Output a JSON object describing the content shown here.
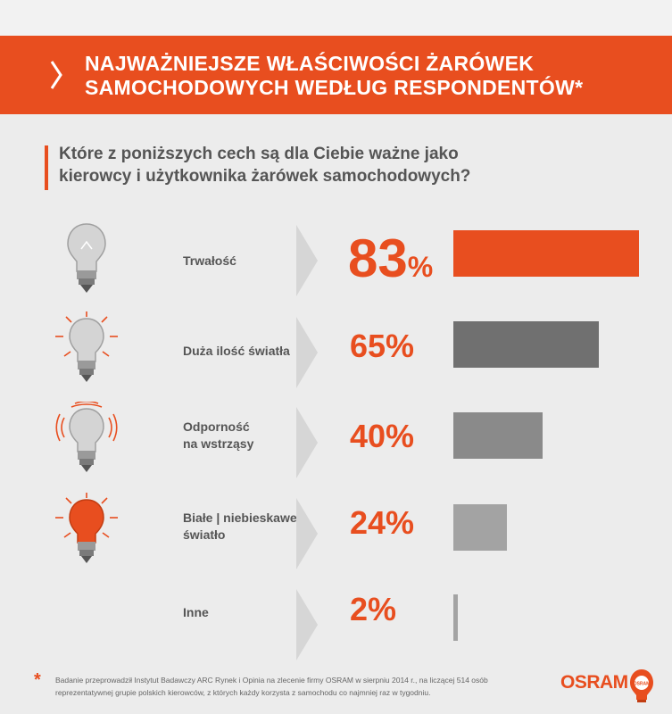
{
  "header": {
    "title_line1": "NAJWAŻNIEJSZE WŁAŚCIWOŚCI ŻARÓWEK",
    "title_line2": "SAMOCHODOWYCH WEDŁUG RESPONDENTÓW*"
  },
  "question": {
    "line1": "Które z poniższych cech są dla Ciebie ważne jako",
    "line2": "kierowcy i użytkownika żarówek samochodowych?"
  },
  "colors": {
    "accent": "#e84e1f",
    "dark_bar": "#707070",
    "mid_bar": "#8a8a8a",
    "light_bar": "#a3a3a3",
    "text": "#555555",
    "background": "#ececec"
  },
  "chart_data": {
    "type": "bar",
    "orientation": "horizontal",
    "categories": [
      "Trwałość",
      "Duża ilość światła",
      "Odporność na wstrząsy",
      "Białe | niebieskawe światło",
      "Inne"
    ],
    "values": [
      83,
      65,
      40,
      24,
      2
    ],
    "value_labels": [
      "83%",
      "65%",
      "40%",
      "24%",
      "2%"
    ],
    "unit": "%",
    "xlim": [
      0,
      100
    ]
  },
  "rows": [
    {
      "label_line1": "Trwałość",
      "label_line2": "",
      "value": "83",
      "unit": "%",
      "icon": "bulb-icon"
    },
    {
      "label_line1": "Duża ilość światła",
      "label_line2": "",
      "value": "65%",
      "icon": "bulb-bright-icon"
    },
    {
      "label_line1": "Odporność",
      "label_line2": "na wstrząsy",
      "value": "40%",
      "icon": "bulb-vibration-icon"
    },
    {
      "label_line1": "Białe | niebieskawe",
      "label_line2": "światło",
      "value": "24%",
      "icon": "bulb-white-light-icon"
    },
    {
      "label_line1": "Inne",
      "label_line2": "",
      "value": "2%",
      "icon": ""
    }
  ],
  "footnote": {
    "star": "*",
    "line1": "Badanie przeprowadził Instytut Badawczy ARC Rynek i Opinia na zlecenie firmy OSRAM w sierpniu 2014 r., na liczącej 514 osób",
    "line2": "reprezentatywnej grupie polskich kierowców, z których każdy korzysta z samochodu co najmniej raz w tygodniu."
  },
  "logo": {
    "text": "OSRAM",
    "badge": "OSRAM",
    "icon": "osram-bulb-logo-icon"
  }
}
